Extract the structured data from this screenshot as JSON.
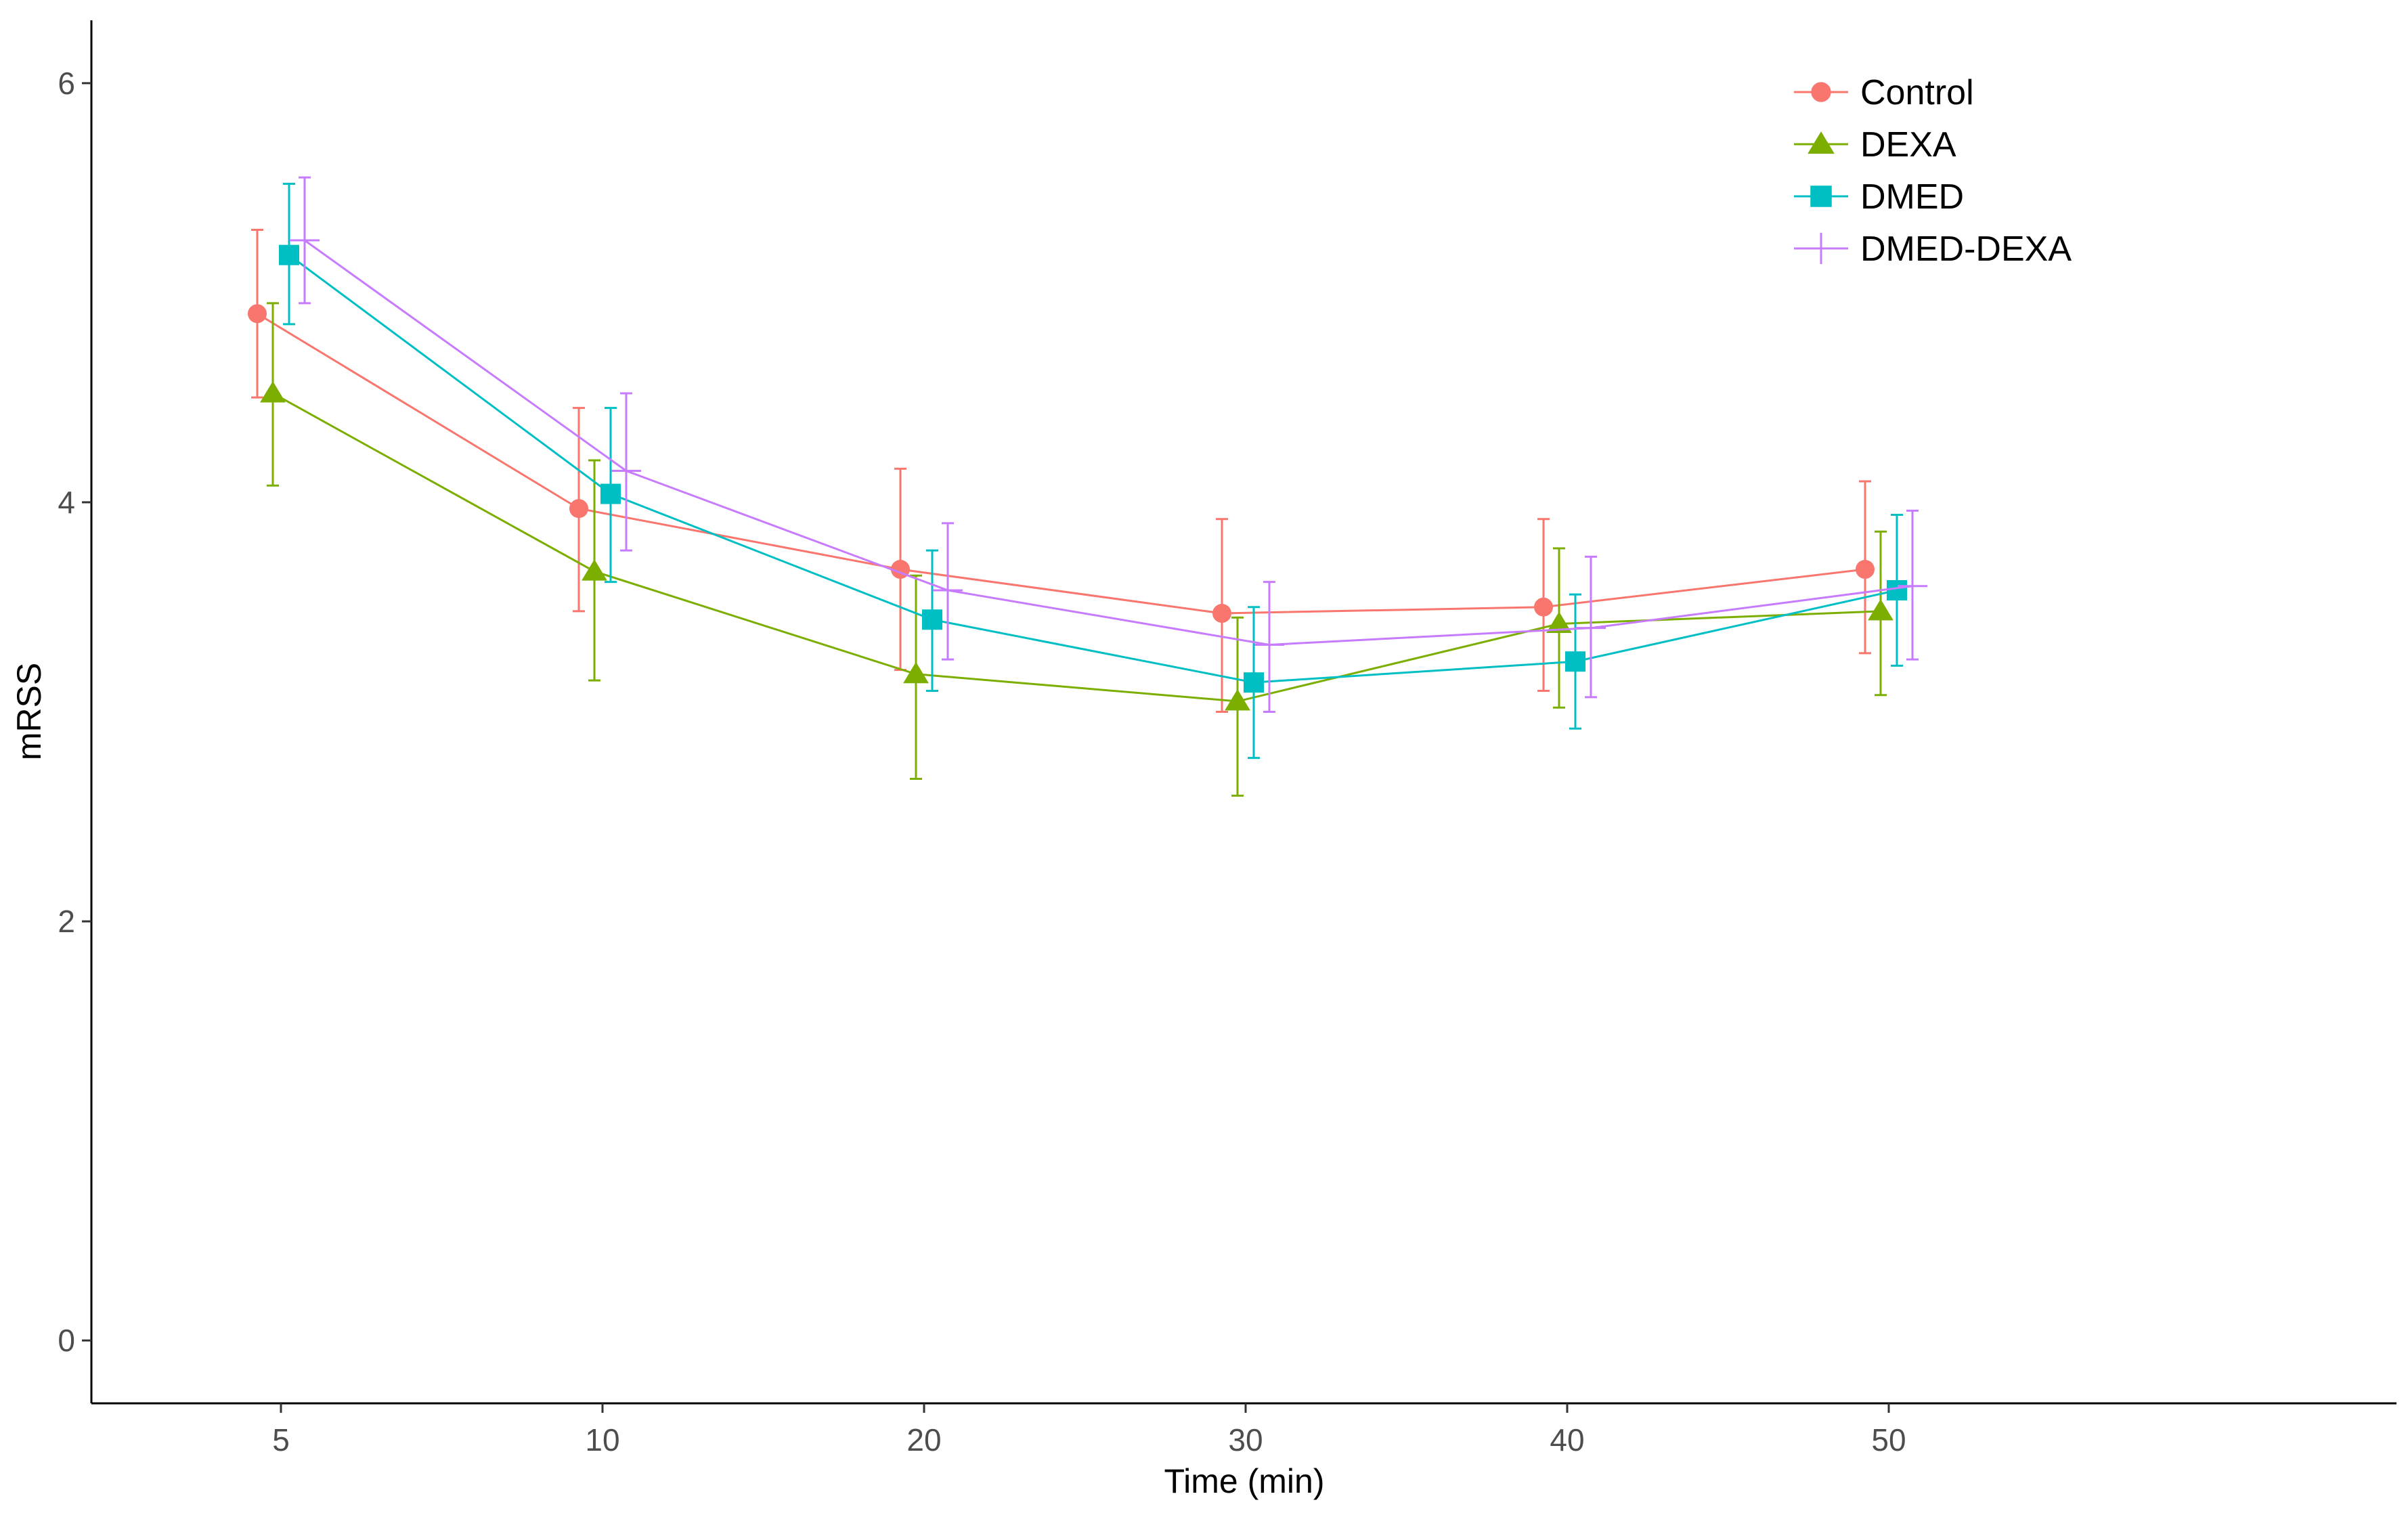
{
  "chart_data": {
    "type": "line",
    "title": "",
    "xlabel": "Time (min)",
    "ylabel": "mRSS",
    "categories": [
      "5",
      "10",
      "20",
      "30",
      "40",
      "50"
    ],
    "yticks": [
      "0",
      "2",
      "4",
      "6"
    ],
    "ylim": [
      -0.3,
      6.3
    ],
    "grid": false,
    "legend_position": "top-right",
    "series": [
      {
        "name": "Control",
        "color": "#F8766D",
        "shape": "circle",
        "values": [
          4.9,
          3.97,
          3.68,
          3.47,
          3.5,
          3.68
        ],
        "error_low": [
          4.5,
          3.48,
          3.2,
          3.0,
          3.1,
          3.28
        ],
        "error_high": [
          5.3,
          4.45,
          4.16,
          3.92,
          3.92,
          4.1
        ]
      },
      {
        "name": "DEXA",
        "color": "#7CAE00",
        "shape": "triangle",
        "values": [
          4.52,
          3.67,
          3.18,
          3.05,
          3.42,
          3.48
        ],
        "error_low": [
          4.08,
          3.15,
          2.68,
          2.6,
          3.02,
          3.08
        ],
        "error_high": [
          4.95,
          4.2,
          3.65,
          3.45,
          3.78,
          3.86
        ]
      },
      {
        "name": "DMED",
        "color": "#00BFC4",
        "shape": "square",
        "values": [
          5.18,
          4.04,
          3.44,
          3.14,
          3.24,
          3.58
        ],
        "error_low": [
          4.85,
          3.62,
          3.1,
          2.78,
          2.92,
          3.22
        ],
        "error_high": [
          5.52,
          4.45,
          3.77,
          3.5,
          3.56,
          3.94
        ]
      },
      {
        "name": "DMED-DEXA",
        "color": "#C77CFF",
        "shape": "plus",
        "values": [
          5.25,
          4.15,
          3.58,
          3.32,
          3.4,
          3.6
        ],
        "error_low": [
          4.95,
          3.77,
          3.25,
          3.0,
          3.07,
          3.25
        ],
        "error_high": [
          5.55,
          4.52,
          3.9,
          3.62,
          3.74,
          3.96
        ]
      }
    ]
  }
}
